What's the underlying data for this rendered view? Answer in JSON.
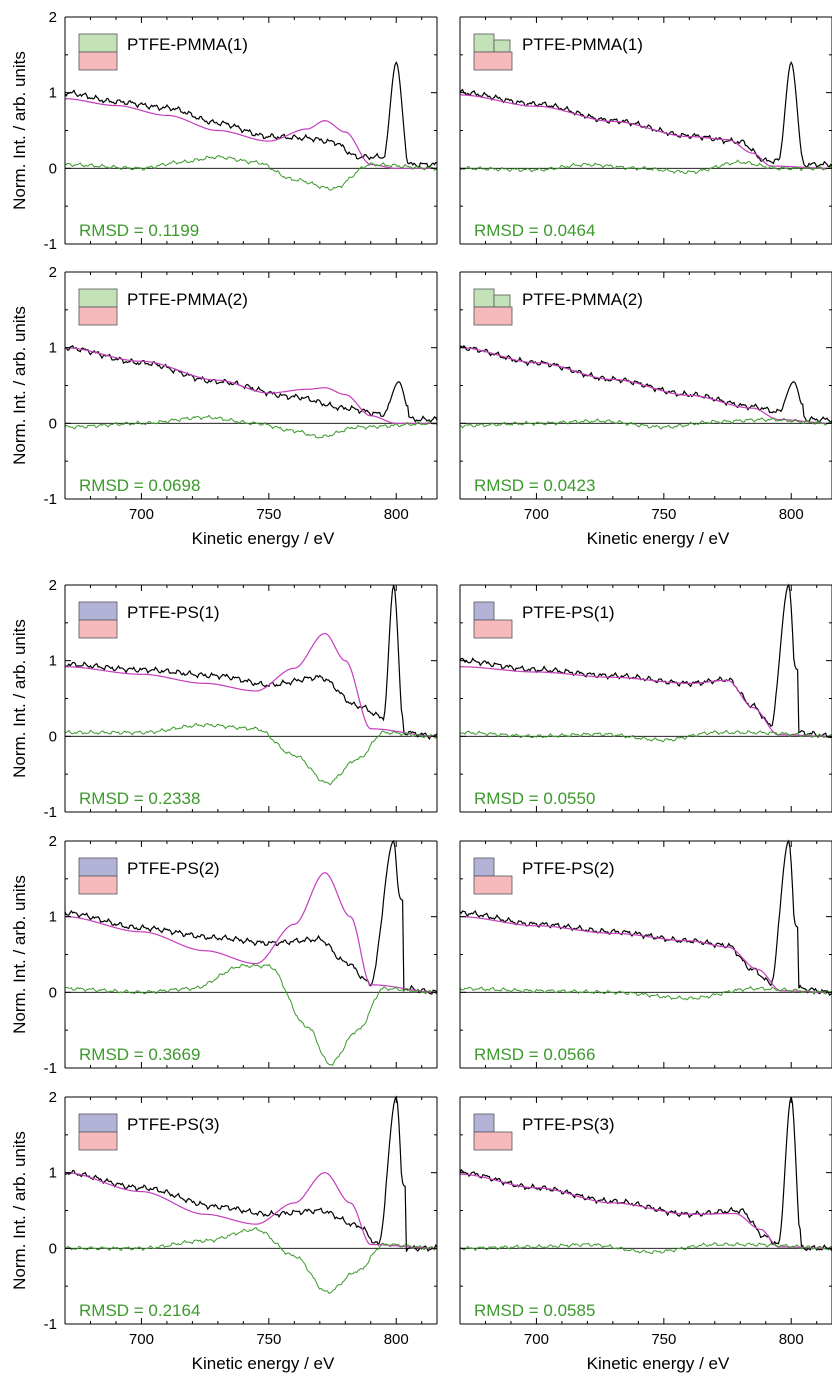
{
  "figure": {
    "colors": {
      "experimental": "#000000",
      "fit": "#c43dbd",
      "residual": "#3a9a2a",
      "pmma_swatch": "#c4e2b8",
      "ps_swatch": "#b3b3d8",
      "ptfe_swatch": "#f6b9bc",
      "axis": "#000000"
    },
    "xlabel": "Kinetic energy / eV",
    "ylabel": "Norm. Int. / arb. units",
    "xlim": [
      670,
      816
    ],
    "ylim": [
      -1,
      2
    ],
    "xticks": [
      700,
      750,
      800
    ],
    "yticks": [
      -1,
      0,
      1,
      2
    ],
    "legend_position": "top-left",
    "rmsd_position": "bottom-left"
  },
  "chart_data": [
    {
      "type": "line",
      "panel": "left",
      "sample": "PTFE-PMMA(1)",
      "polymer": "PMMA",
      "rmsd": "RMSD = 0.1199",
      "rmsd_value": 0.1199,
      "trough_x": 774,
      "trough_y": -0.27,
      "peak_x": 800,
      "peak_y": 1.4,
      "series": [
        {
          "role": "experimental",
          "x": [
            670,
            690,
            710,
            730,
            750,
            765,
            775,
            785,
            795,
            800,
            805,
            816
          ],
          "y": [
            1.0,
            0.88,
            0.8,
            0.6,
            0.42,
            0.4,
            0.35,
            0.15,
            0.15,
            1.4,
            0.05,
            0.05
          ]
        },
        {
          "role": "fit",
          "x": [
            670,
            690,
            710,
            730,
            750,
            765,
            772,
            780,
            790,
            800,
            816
          ],
          "y": [
            0.92,
            0.83,
            0.7,
            0.5,
            0.36,
            0.52,
            0.63,
            0.48,
            0.05,
            0.0,
            0.0
          ]
        },
        {
          "role": "residual",
          "x": [
            670,
            700,
            715,
            730,
            745,
            760,
            775,
            790,
            816
          ],
          "y": [
            0.05,
            0.0,
            0.08,
            0.15,
            0.08,
            -0.15,
            -0.27,
            0.05,
            0.0
          ]
        }
      ]
    },
    {
      "type": "line",
      "panel": "right",
      "sample": "PTFE-PMMA(1)",
      "polymer": "PMMA",
      "rmsd": "RMSD = 0.0464",
      "rmsd_value": 0.0464,
      "trough_x": 760,
      "trough_y": -0.05,
      "peak_x": 800,
      "peak_y": 1.4,
      "series": [
        {
          "role": "experimental",
          "x": [
            670,
            700,
            730,
            760,
            780,
            790,
            795,
            800,
            805,
            816
          ],
          "y": [
            1.0,
            0.85,
            0.63,
            0.43,
            0.35,
            0.1,
            0.1,
            1.4,
            0.05,
            0.05
          ]
        },
        {
          "role": "fit",
          "x": [
            670,
            700,
            730,
            760,
            775,
            785,
            792,
            816
          ],
          "y": [
            0.97,
            0.82,
            0.62,
            0.42,
            0.38,
            0.2,
            0.03,
            0.0
          ]
        },
        {
          "role": "residual",
          "x": [
            670,
            700,
            720,
            740,
            760,
            780,
            795,
            816
          ],
          "y": [
            0.0,
            -0.02,
            0.05,
            0.0,
            -0.05,
            0.08,
            0.0,
            0.0
          ]
        }
      ]
    },
    {
      "type": "line",
      "panel": "left",
      "sample": "PTFE-PMMA(2)",
      "polymer": "PMMA",
      "rmsd": "RMSD = 0.0698",
      "rmsd_value": 0.0698,
      "trough_x": 770,
      "trough_y": -0.18,
      "peak_x": 801,
      "peak_y": 0.55,
      "series": [
        {
          "role": "experimental",
          "x": [
            670,
            700,
            730,
            760,
            780,
            795,
            801,
            806,
            816
          ],
          "y": [
            1.0,
            0.8,
            0.55,
            0.35,
            0.2,
            0.12,
            0.55,
            0.05,
            0.05
          ]
        },
        {
          "role": "fit",
          "x": [
            670,
            700,
            730,
            750,
            765,
            772,
            780,
            790,
            800,
            816
          ],
          "y": [
            1.0,
            0.82,
            0.57,
            0.4,
            0.45,
            0.47,
            0.38,
            0.1,
            0.0,
            0.0
          ]
        },
        {
          "role": "residual",
          "x": [
            670,
            700,
            725,
            745,
            760,
            770,
            785,
            816
          ],
          "y": [
            -0.05,
            0.0,
            0.08,
            0.0,
            -0.1,
            -0.18,
            -0.05,
            0.0
          ]
        }
      ]
    },
    {
      "type": "line",
      "panel": "right",
      "sample": "PTFE-PMMA(2)",
      "polymer": "PMMA",
      "rmsd": "RMSD = 0.0423",
      "rmsd_value": 0.0423,
      "trough_x": 750,
      "trough_y": -0.05,
      "peak_x": 801,
      "peak_y": 0.55,
      "series": [
        {
          "role": "experimental",
          "x": [
            670,
            700,
            730,
            760,
            785,
            795,
            801,
            806,
            816
          ],
          "y": [
            1.0,
            0.8,
            0.58,
            0.38,
            0.22,
            0.15,
            0.55,
            0.05,
            0.05
          ]
        },
        {
          "role": "fit",
          "x": [
            670,
            700,
            730,
            760,
            785,
            795,
            816
          ],
          "y": [
            1.0,
            0.8,
            0.58,
            0.37,
            0.2,
            0.05,
            0.0
          ]
        },
        {
          "role": "residual",
          "x": [
            670,
            700,
            725,
            750,
            770,
            790,
            816
          ],
          "y": [
            -0.03,
            0.0,
            0.03,
            -0.05,
            0.02,
            0.05,
            0.0
          ]
        }
      ]
    },
    {
      "type": "line",
      "panel": "left",
      "sample": "PTFE-PS(1)",
      "polymer": "PS",
      "rmsd": "RMSD = 0.2338",
      "rmsd_value": 0.2338,
      "trough_x": 773,
      "trough_y": -0.62,
      "peak_x": 799,
      "peak_y": 2.0,
      "series": [
        {
          "role": "experimental",
          "x": [
            670,
            700,
            730,
            750,
            770,
            785,
            795,
            799,
            803,
            816
          ],
          "y": [
            0.95,
            0.88,
            0.8,
            0.68,
            0.78,
            0.4,
            0.25,
            2.0,
            0.05,
            0.0
          ]
        },
        {
          "role": "fit",
          "x": [
            670,
            700,
            725,
            745,
            760,
            772,
            780,
            790,
            816
          ],
          "y": [
            0.92,
            0.82,
            0.7,
            0.6,
            0.9,
            1.36,
            1.0,
            0.1,
            0.0
          ]
        },
        {
          "role": "residual",
          "x": [
            670,
            700,
            725,
            745,
            760,
            773,
            785,
            795,
            816
          ],
          "y": [
            0.05,
            0.05,
            0.15,
            0.1,
            -0.25,
            -0.62,
            -0.3,
            0.05,
            0.0
          ]
        }
      ]
    },
    {
      "type": "line",
      "panel": "right",
      "sample": "PTFE-PS(1)",
      "polymer": "PS",
      "rmsd": "RMSD = 0.0550",
      "rmsd_value": 0.055,
      "trough_x": 750,
      "trough_y": -0.05,
      "peak_x": 799,
      "peak_y": 2.0,
      "series": [
        {
          "role": "experimental",
          "x": [
            670,
            700,
            730,
            760,
            775,
            785,
            792,
            799,
            803,
            816
          ],
          "y": [
            1.0,
            0.88,
            0.8,
            0.7,
            0.75,
            0.4,
            0.15,
            2.0,
            0.05,
            0.0
          ]
        },
        {
          "role": "fit",
          "x": [
            670,
            700,
            730,
            760,
            775,
            785,
            795,
            816
          ],
          "y": [
            0.92,
            0.85,
            0.78,
            0.7,
            0.74,
            0.38,
            0.02,
            0.0
          ]
        },
        {
          "role": "residual",
          "x": [
            670,
            700,
            725,
            750,
            770,
            785,
            816
          ],
          "y": [
            0.05,
            0.0,
            0.03,
            -0.05,
            0.05,
            0.05,
            0.0
          ]
        }
      ]
    },
    {
      "type": "line",
      "panel": "left",
      "sample": "PTFE-PS(2)",
      "polymer": "PS",
      "rmsd": "RMSD = 0.3669",
      "rmsd_value": 0.3669,
      "trough_x": 774,
      "trough_y": -0.95,
      "peak_x": 799,
      "peak_y": 2.0,
      "series": [
        {
          "role": "experimental",
          "x": [
            670,
            700,
            730,
            750,
            770,
            780,
            790,
            799,
            803,
            816
          ],
          "y": [
            1.05,
            0.85,
            0.72,
            0.65,
            0.7,
            0.4,
            0.12,
            2.0,
            0.05,
            0.0
          ]
        },
        {
          "role": "fit",
          "x": [
            670,
            700,
            725,
            745,
            760,
            772,
            782,
            790,
            816
          ],
          "y": [
            1.0,
            0.8,
            0.55,
            0.38,
            0.9,
            1.58,
            1.0,
            0.1,
            0.0
          ]
        },
        {
          "role": "residual",
          "x": [
            670,
            700,
            720,
            740,
            750,
            765,
            774,
            785,
            795,
            816
          ],
          "y": [
            0.05,
            0.0,
            0.05,
            0.35,
            0.35,
            -0.45,
            -0.95,
            -0.5,
            0.05,
            0.0
          ]
        }
      ]
    },
    {
      "type": "line",
      "panel": "right",
      "sample": "PTFE-PS(2)",
      "polymer": "PS",
      "rmsd": "RMSD = 0.0566",
      "rmsd_value": 0.0566,
      "trough_x": 760,
      "trough_y": -0.08,
      "peak_x": 799,
      "peak_y": 2.0,
      "series": [
        {
          "role": "experimental",
          "x": [
            670,
            700,
            730,
            760,
            775,
            785,
            792,
            799,
            803,
            816
          ],
          "y": [
            1.05,
            0.9,
            0.8,
            0.68,
            0.62,
            0.3,
            0.12,
            2.0,
            0.05,
            0.0
          ]
        },
        {
          "role": "fit",
          "x": [
            670,
            700,
            730,
            760,
            775,
            787,
            796,
            816
          ],
          "y": [
            1.0,
            0.88,
            0.78,
            0.68,
            0.6,
            0.3,
            0.02,
            0.0
          ]
        },
        {
          "role": "residual",
          "x": [
            670,
            700,
            730,
            760,
            785,
            816
          ],
          "y": [
            0.05,
            0.02,
            0.0,
            -0.08,
            0.05,
            0.0
          ]
        }
      ]
    },
    {
      "type": "line",
      "panel": "left",
      "sample": "PTFE-PS(3)",
      "polymer": "PS",
      "rmsd": "RMSD = 0.2164",
      "rmsd_value": 0.2164,
      "trough_x": 773,
      "trough_y": -0.58,
      "peak_x": 800,
      "peak_y": 2.0,
      "series": [
        {
          "role": "experimental",
          "x": [
            670,
            700,
            730,
            750,
            770,
            785,
            793,
            800,
            804,
            816
          ],
          "y": [
            1.0,
            0.8,
            0.55,
            0.45,
            0.5,
            0.3,
            0.05,
            2.0,
            0.0,
            0.0
          ]
        },
        {
          "role": "fit",
          "x": [
            670,
            700,
            725,
            745,
            760,
            772,
            782,
            790,
            816
          ],
          "y": [
            1.0,
            0.75,
            0.45,
            0.32,
            0.6,
            1.0,
            0.6,
            0.05,
            0.0
          ]
        },
        {
          "role": "residual",
          "x": [
            670,
            700,
            725,
            745,
            760,
            773,
            785,
            795,
            816
          ],
          "y": [
            0.0,
            0.0,
            0.1,
            0.25,
            -0.1,
            -0.58,
            -0.3,
            0.05,
            0.0
          ]
        }
      ]
    },
    {
      "type": "line",
      "panel": "right",
      "sample": "PTFE-PS(3)",
      "polymer": "PS",
      "rmsd": "RMSD = 0.0585",
      "rmsd_value": 0.0585,
      "trough_x": 745,
      "trough_y": -0.05,
      "peak_x": 800,
      "peak_y": 2.0,
      "series": [
        {
          "role": "experimental",
          "x": [
            670,
            700,
            730,
            760,
            780,
            790,
            795,
            800,
            804,
            816
          ],
          "y": [
            1.0,
            0.8,
            0.62,
            0.45,
            0.5,
            0.15,
            0.05,
            2.0,
            0.0,
            0.0
          ]
        },
        {
          "role": "fit",
          "x": [
            670,
            700,
            730,
            760,
            778,
            788,
            795,
            816
          ],
          "y": [
            0.98,
            0.8,
            0.6,
            0.45,
            0.46,
            0.25,
            0.02,
            0.0
          ]
        },
        {
          "role": "residual",
          "x": [
            670,
            700,
            720,
            745,
            770,
            785,
            816
          ],
          "y": [
            0.0,
            0.02,
            0.05,
            -0.05,
            0.05,
            0.05,
            0.0
          ]
        }
      ]
    }
  ]
}
